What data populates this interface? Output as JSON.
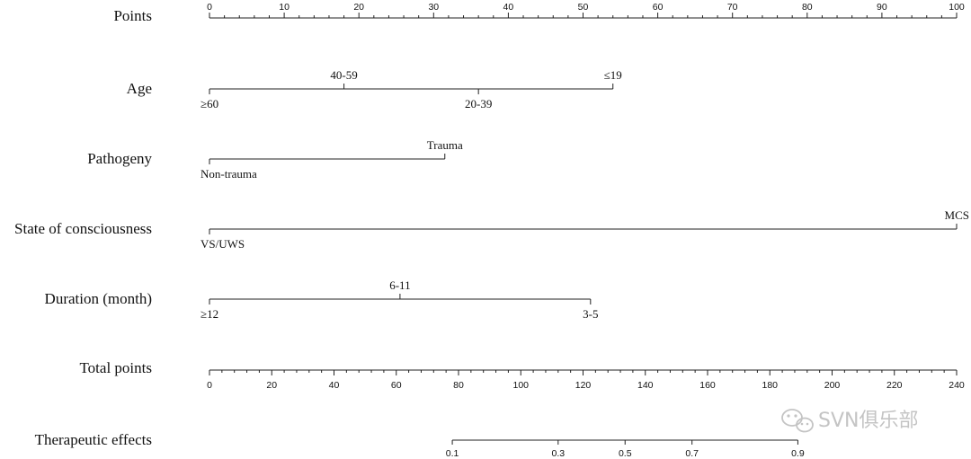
{
  "chart_data": {
    "type": "nomogram",
    "points_scale": {
      "label": "Points",
      "min": 0,
      "max": 100,
      "major_step": 10,
      "minor_step": 2,
      "tick_labels": [
        "0",
        "10",
        "20",
        "30",
        "40",
        "50",
        "60",
        "70",
        "80",
        "90",
        "100"
      ]
    },
    "predictors": [
      {
        "label": "Age",
        "levels": [
          {
            "name": "≥60",
            "points": 0,
            "side": "below"
          },
          {
            "name": "40-59",
            "points": 18,
            "side": "above"
          },
          {
            "name": "20-39",
            "points": 36,
            "side": "below"
          },
          {
            "name": "≤19",
            "points": 54,
            "side": "above"
          }
        ]
      },
      {
        "label": "Pathogeny",
        "levels": [
          {
            "name": "Non-trauma",
            "points": 0,
            "side": "below"
          },
          {
            "name": "Trauma",
            "points": 31.5,
            "side": "above"
          }
        ]
      },
      {
        "label": "State of consciousness",
        "levels": [
          {
            "name": "VS/UWS",
            "points": 0,
            "side": "below"
          },
          {
            "name": "MCS",
            "points": 100,
            "side": "above"
          }
        ]
      },
      {
        "label": "Duration (month)",
        "levels": [
          {
            "name": "≥12",
            "points": 0,
            "side": "below"
          },
          {
            "name": "6-11",
            "points": 25.5,
            "side": "above"
          },
          {
            "name": "3-5",
            "points": 51,
            "side": "below"
          }
        ]
      }
    ],
    "total_points_scale": {
      "label": "Total points",
      "min": 0,
      "max": 240,
      "major_step": 20,
      "minor_step": 4,
      "tick_labels": [
        "0",
        "20",
        "40",
        "60",
        "80",
        "100",
        "120",
        "140",
        "160",
        "180",
        "200",
        "220",
        "240"
      ]
    },
    "outcome_scale": {
      "label": "Therapeutic effects",
      "line_range": [
        0.1,
        0.9
      ],
      "ticks": [
        {
          "label": "0.1",
          "total_points": 78
        },
        {
          "label": "0.3",
          "total_points": 112
        },
        {
          "label": "0.5",
          "total_points": 133.5
        },
        {
          "label": "0.7",
          "total_points": 155
        },
        {
          "label": "0.9",
          "total_points": 189
        }
      ]
    }
  },
  "watermark": {
    "text": "SVN俱乐部",
    "icon": "wechat-icon",
    "color": "#c4c4c4"
  }
}
